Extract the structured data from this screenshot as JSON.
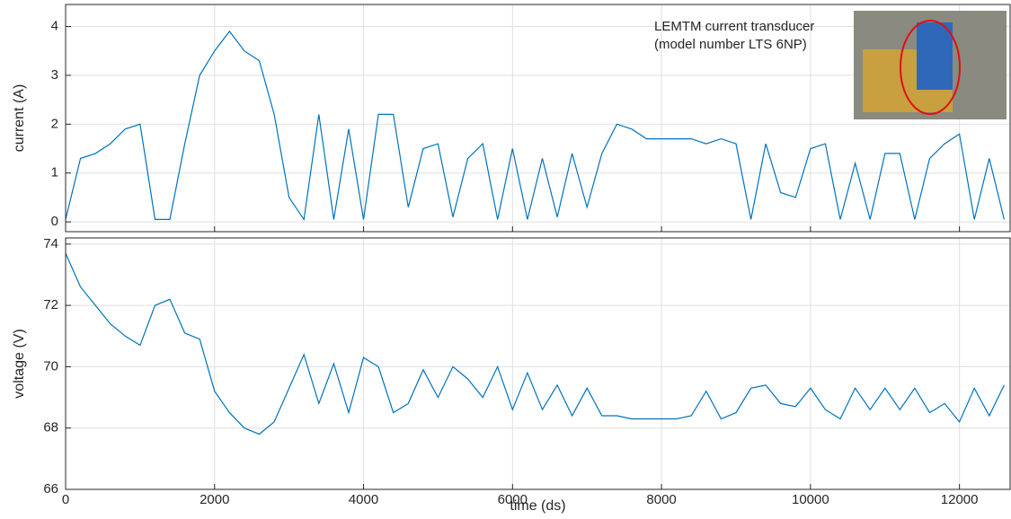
{
  "chart_data": [
    {
      "type": "line",
      "ylabel": "current (A)",
      "annotation": [
        "LEMTM current transducer",
        "(model number LTS 6NP)"
      ],
      "x": [
        0,
        200,
        400,
        600,
        800,
        1000,
        1200,
        1400,
        1600,
        1800,
        2000,
        2200,
        2400,
        2600,
        2800,
        3000,
        3200,
        3400,
        3600,
        3800,
        4000,
        4200,
        4400,
        4600,
        4800,
        5000,
        5200,
        5400,
        5600,
        5800,
        6000,
        6200,
        6400,
        6600,
        6800,
        7000,
        7200,
        7400,
        7600,
        7800,
        8000,
        8200,
        8400,
        8600,
        8800,
        9000,
        9200,
        9400,
        9600,
        9800,
        10000,
        10200,
        10400,
        10600,
        10800,
        11000,
        11200,
        11400,
        11600,
        11800,
        12000,
        12200,
        12400,
        12600
      ],
      "series": [
        {
          "color": "#0072bd",
          "values": [
            0.05,
            1.3,
            1.4,
            1.6,
            1.9,
            2.0,
            0.05,
            0.05,
            1.6,
            3.0,
            3.5,
            3.9,
            3.5,
            3.3,
            2.2,
            0.5,
            0.05,
            2.2,
            0.05,
            1.9,
            0.05,
            2.2,
            2.2,
            0.3,
            1.5,
            1.6,
            0.1,
            1.3,
            1.6,
            0.05,
            1.5,
            0.05,
            1.3,
            0.1,
            1.4,
            0.3,
            1.4,
            2.0,
            1.9,
            1.7,
            1.7,
            1.7,
            1.7,
            1.6,
            1.7,
            1.6,
            0.05,
            1.6,
            0.6,
            0.5,
            1.5,
            1.6,
            0.05,
            1.2,
            0.05,
            1.4,
            1.4,
            0.05,
            1.3,
            1.6,
            1.8,
            0.05,
            1.3,
            0.05
          ]
        }
      ],
      "xlim": [
        0,
        12680
      ],
      "xticks": [
        0,
        2000,
        4000,
        6000,
        8000,
        10000,
        12000
      ],
      "ylim": [
        -0.2,
        4.45
      ],
      "yticks": [
        0,
        1,
        2,
        3,
        4
      ],
      "grid": true
    },
    {
      "type": "line",
      "xlabel": "time (ds)",
      "ylabel": "voltage (V)",
      "x": [
        0,
        200,
        400,
        600,
        800,
        1000,
        1200,
        1400,
        1600,
        1800,
        2000,
        2200,
        2400,
        2600,
        2800,
        3000,
        3200,
        3400,
        3600,
        3800,
        4000,
        4200,
        4400,
        4600,
        4800,
        5000,
        5200,
        5400,
        5600,
        5800,
        6000,
        6200,
        6400,
        6600,
        6800,
        7000,
        7200,
        7400,
        7600,
        7800,
        8000,
        8200,
        8400,
        8600,
        8800,
        9000,
        9200,
        9400,
        9600,
        9800,
        10000,
        10200,
        10400,
        10600,
        10800,
        11000,
        11200,
        11400,
        11600,
        11800,
        12000,
        12200,
        12400,
        12600
      ],
      "series": [
        {
          "color": "#0072bd",
          "values": [
            73.7,
            72.6,
            72.0,
            71.4,
            71.0,
            70.7,
            72.0,
            72.2,
            71.1,
            70.9,
            69.2,
            68.5,
            68.0,
            67.8,
            68.2,
            69.3,
            70.4,
            68.8,
            70.1,
            68.5,
            70.3,
            70.0,
            68.5,
            68.8,
            69.9,
            69.0,
            70.0,
            69.6,
            69.0,
            70.0,
            68.6,
            69.8,
            68.6,
            69.4,
            68.4,
            69.3,
            68.4,
            68.4,
            68.3,
            68.3,
            68.3,
            68.3,
            68.4,
            69.2,
            68.3,
            68.5,
            69.3,
            69.4,
            68.8,
            68.7,
            69.3,
            68.6,
            68.3,
            69.3,
            68.6,
            69.3,
            68.6,
            69.3,
            68.5,
            68.8,
            68.2,
            69.3,
            68.4,
            69.4
          ]
        }
      ],
      "xlim": [
        0,
        12680
      ],
      "xticks": [
        0,
        2000,
        4000,
        6000,
        8000,
        10000,
        12000
      ],
      "ylim": [
        66,
        74.2
      ],
      "yticks": [
        66,
        68,
        70,
        72,
        74
      ],
      "grid": true
    }
  ]
}
